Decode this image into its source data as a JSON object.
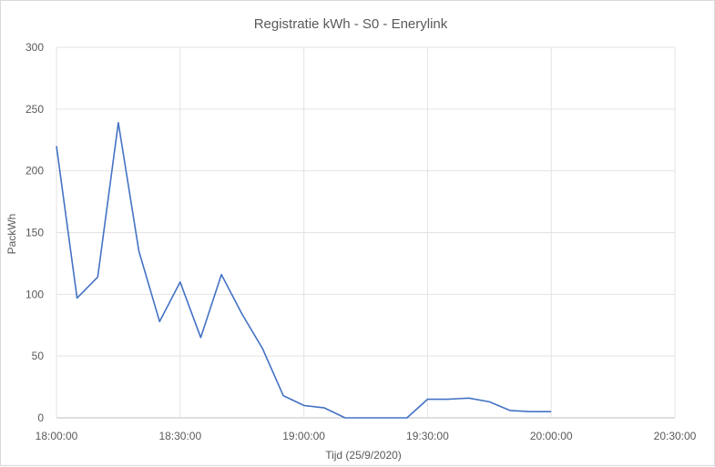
{
  "chart_data": {
    "type": "line",
    "title": "Registratie kWh - S0 - Enerylink",
    "xlabel": "Tijd (25/9/2020)",
    "ylabel": "PackWh",
    "x_ticks": [
      "18:00:00",
      "18:30:00",
      "19:00:00",
      "19:30:00",
      "20:00:00",
      "20:30:00"
    ],
    "y_ticks": [
      "0",
      "50",
      "100",
      "150",
      "200",
      "250",
      "300"
    ],
    "xlim": [
      "18:00:00",
      "20:30:00"
    ],
    "ylim": [
      0,
      300
    ],
    "grid": true,
    "line_color": "#4472c4",
    "x": [
      "18:00:00",
      "18:05:00",
      "18:10:00",
      "18:15:00",
      "18:20:00",
      "18:25:00",
      "18:30:00",
      "18:35:00",
      "18:40:00",
      "18:45:00",
      "18:50:00",
      "18:55:00",
      "19:00:00",
      "19:05:00",
      "19:10:00",
      "19:15:00",
      "19:20:00",
      "19:25:00",
      "19:30:00",
      "19:35:00",
      "19:40:00",
      "19:45:00",
      "19:50:00",
      "19:55:00",
      "20:00:00"
    ],
    "values": [
      220,
      97,
      114,
      239,
      135,
      78,
      110,
      65,
      116,
      84,
      56,
      18,
      10,
      8,
      0,
      0,
      0,
      0,
      15,
      15,
      16,
      13,
      6,
      5,
      5
    ]
  }
}
